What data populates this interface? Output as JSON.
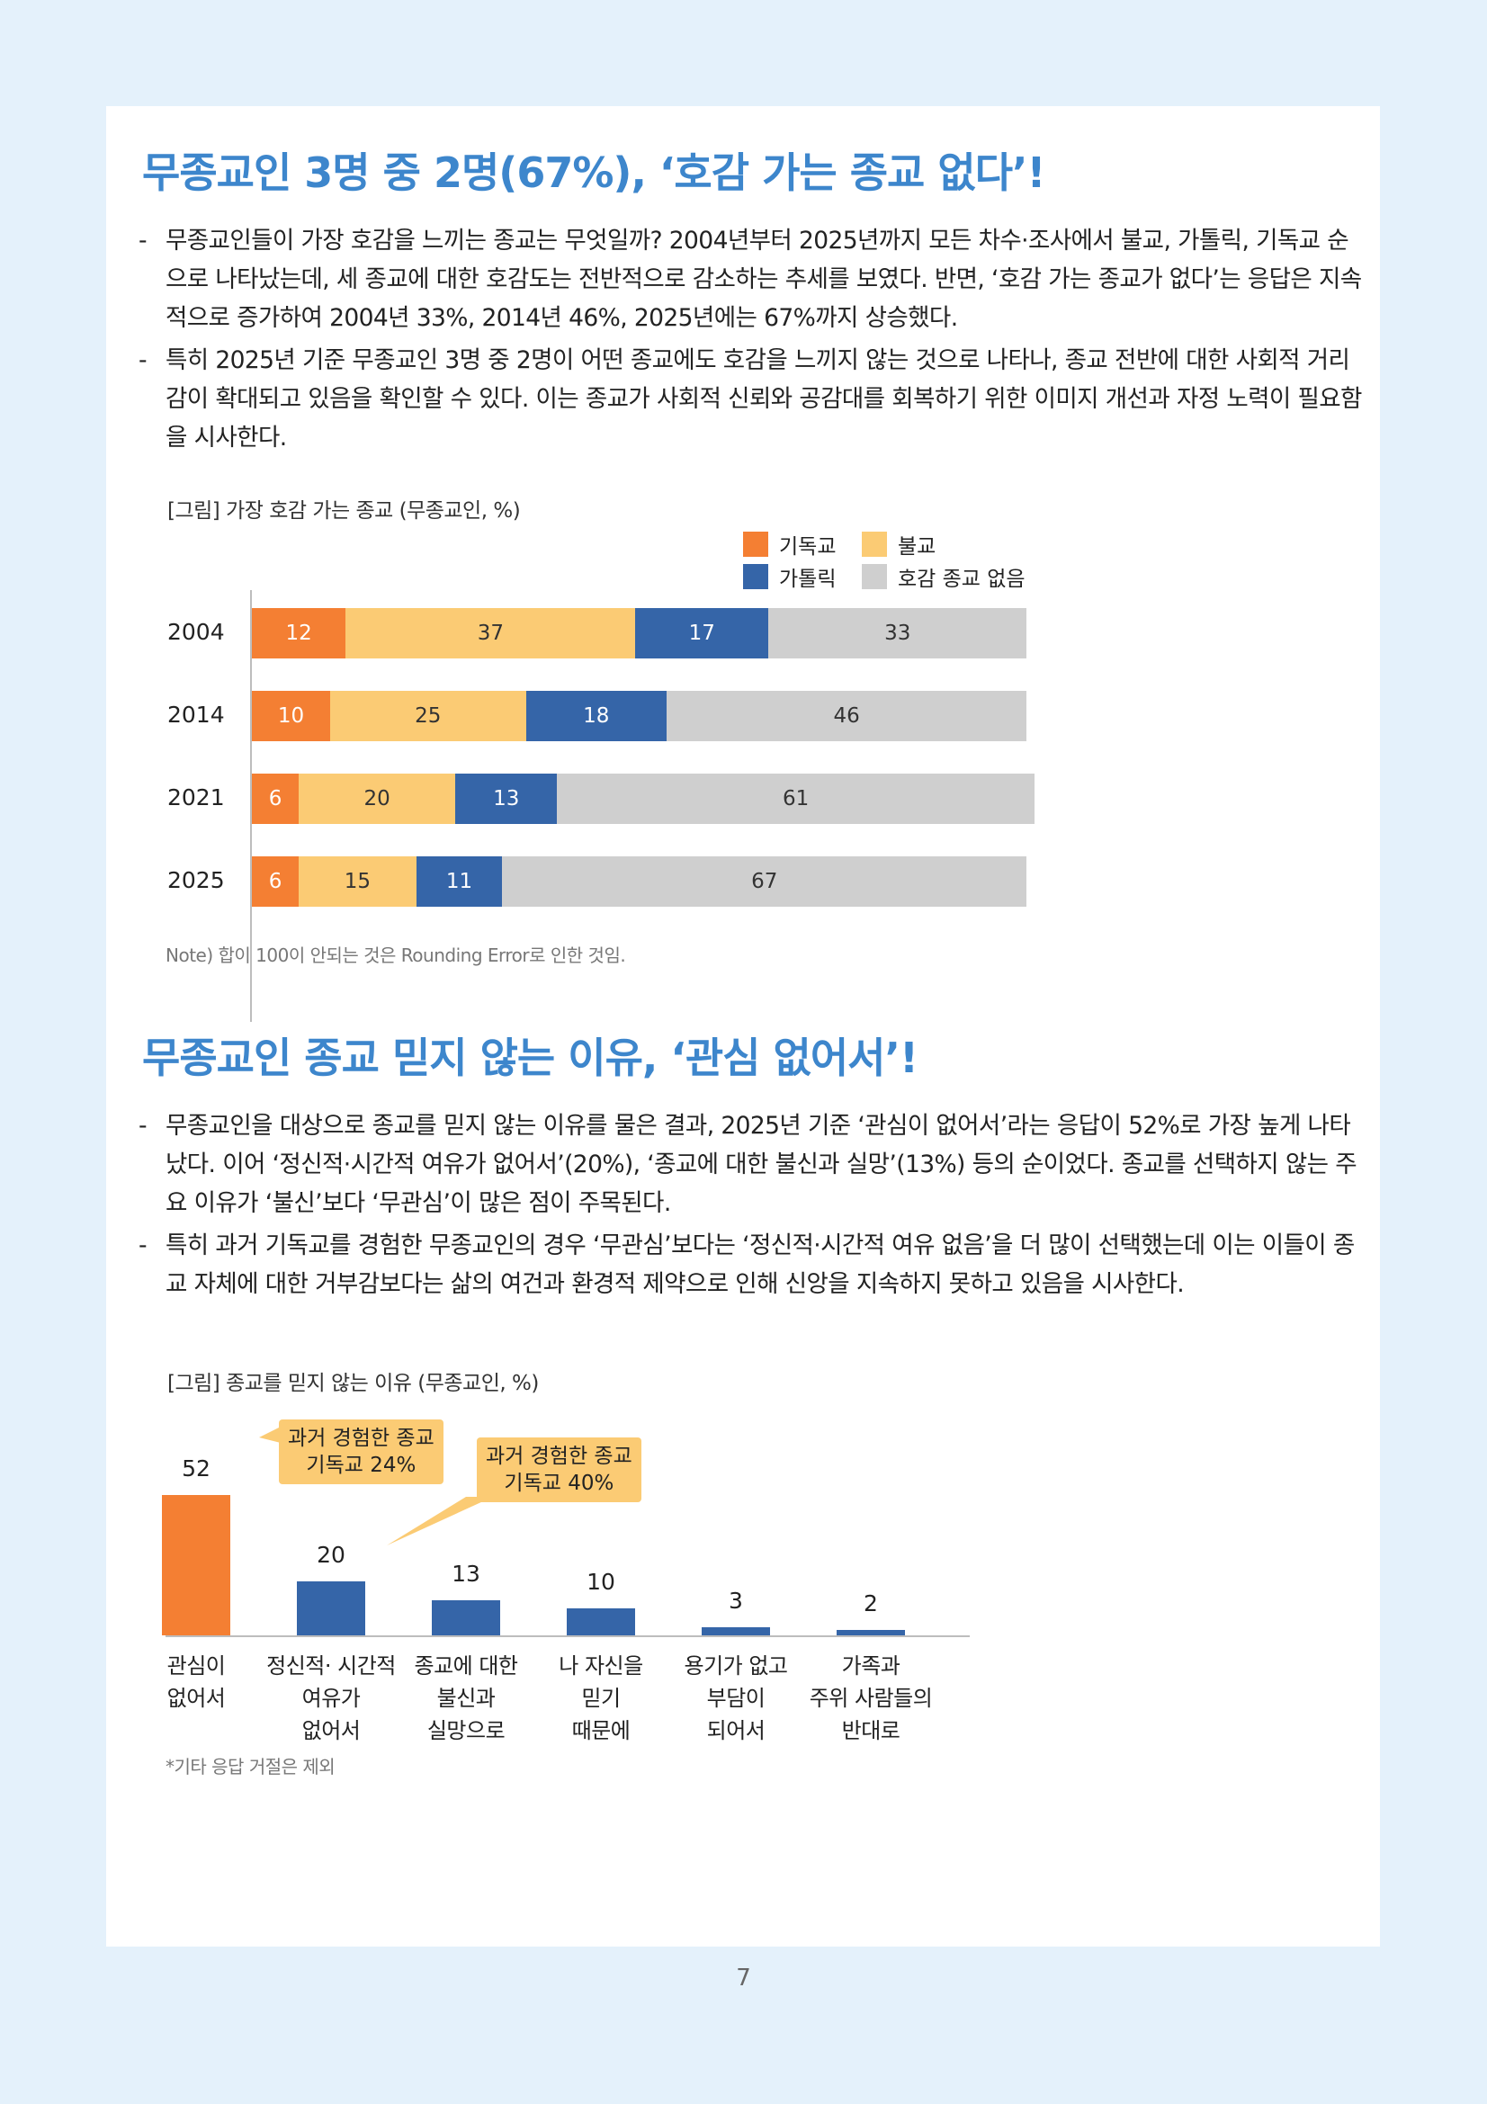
{
  "section1": {
    "title": "무종교인 3명 중 2명(67%), ‘호감 가는 종교 없다’!",
    "bullets": [
      "무종교인들이 가장 호감을 느끼는 종교는 무엇일까? 2004년부터 2025년까지 모든 차수·조사에서 불교, 가톨릭, 기독교 순으로 나타났는데, 세 종교에 대한 호감도는 전반적으로 감소하는 추세를 보였다. 반면, ‘호감 가는 종교가 없다’는 응답은 지속적으로 증가하여 2004년 33%, 2014년 46%, 2025년에는 67%까지 상승했다.",
      "특히 2025년 기준 무종교인 3명 중 2명이 어떤 종교에도 호감을 느끼지 않는 것으로 나타나, 종교 전반에 대한 사회적 거리감이 확대되고 있음을 확인할 수 있다. 이는 종교가 사회적 신뢰와 공감대를 회복하기 위한 이미지 개선과 자정 노력이 필요함을 시사한다."
    ],
    "caption": "[그림] 가장 호감 가는 종교 (무종교인, %)",
    "note": "Note) 합이 100이 안되는 것은 Rounding Error로 인한 것임."
  },
  "section2": {
    "title": "무종교인 종교 믿지 않는 이유, ‘관심 없어서’!",
    "bullets": [
      "무종교인을 대상으로 종교를 믿지 않는 이유를 물은 결과, 2025년 기준 ‘관심이 없어서’라는 응답이 52%로 가장 높게 나타났다. 이어 ‘정신적·시간적 여유가 없어서’(20%), ‘종교에 대한 불신과 실망’(13%) 등의 순이었다. 종교를 선택하지 않는 주요 이유가 ‘불신’보다 ‘무관심’이 많은 점이 주목된다.",
      "특히 과거 기독교를 경험한 무종교인의 경우 ‘무관심’보다는 ‘정신적·시간적 여유 없음’을 더 많이 선택했는데 이는 이들이 종교 자체에 대한 거부감보다는 삶의 여건과 환경적 제약으로 인해 신앙을 지속하지 못하고 있음을 시사한다."
    ],
    "caption": "[그림] 종교를 믿지 않는 이유 (무종교인, %)",
    "note": "*기타 응답 거절은 제외",
    "callouts": [
      {
        "line1": "과거 경험한 종교",
        "line2": "기독교 24%"
      },
      {
        "line1": "과거 경험한 종교",
        "line2": "기독교 40%"
      }
    ]
  },
  "page_number": "7",
  "chart_data": [
    {
      "type": "bar",
      "orientation": "horizontal-stacked",
      "categories": [
        "2004",
        "2014",
        "2021",
        "2025"
      ],
      "series": [
        {
          "name": "기독교",
          "color": "#f47f33",
          "values": [
            12,
            10,
            6,
            6
          ]
        },
        {
          "name": "불교",
          "color": "#fbcb74",
          "values": [
            37,
            25,
            20,
            15
          ]
        },
        {
          "name": "가톨릭",
          "color": "#3565a8",
          "values": [
            17,
            18,
            13,
            11
          ]
        },
        {
          "name": "호감 종교 없음",
          "color": "#cfcfcf",
          "values": [
            33,
            46,
            61,
            67
          ]
        }
      ],
      "legend_position": "top-right",
      "grid": false
    },
    {
      "type": "bar",
      "orientation": "vertical",
      "categories": [
        [
          "관심이",
          "없어서"
        ],
        [
          "정신적· 시간적",
          "여유가",
          "없어서"
        ],
        [
          "종교에 대한",
          "불신과",
          "실망으로"
        ],
        [
          "나 자신을",
          "믿기",
          "때문에"
        ],
        [
          "용기가 없고",
          "부담이",
          "되어서"
        ],
        [
          "가족과",
          "주위 사람들의",
          "반대로"
        ]
      ],
      "values": [
        52,
        20,
        13,
        10,
        3,
        2
      ],
      "colors": [
        "#f47f33",
        "#3565a8",
        "#3565a8",
        "#3565a8",
        "#3565a8",
        "#3565a8"
      ],
      "grid": false
    }
  ]
}
